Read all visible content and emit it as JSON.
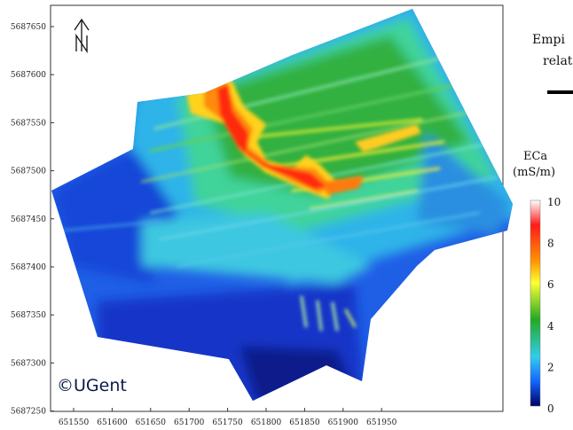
{
  "map": {
    "x_ticks": [
      "651550",
      "651600",
      "651650",
      "651700",
      "651750",
      "651800",
      "651850",
      "651900",
      "651950"
    ],
    "y_ticks": [
      "5687650",
      "5687600",
      "5687550",
      "5687500",
      "5687450",
      "5687400",
      "5687350",
      "5687300",
      "5687250"
    ],
    "north_arrow_label": "N",
    "copyright": "©UGent"
  },
  "right_text": {
    "line1": "Empi",
    "line2": "relat"
  },
  "legend": {
    "title_line1": "ECa",
    "title_line2": "(mS/m)",
    "labels": [
      "10",
      "8",
      "6",
      "4",
      "2",
      "0"
    ],
    "colors": [
      "#ffffff",
      "#ff1a1a",
      "#ff9900",
      "#ffff33",
      "#22aa22",
      "#33ccee",
      "#1166ff",
      "#000066"
    ]
  }
}
